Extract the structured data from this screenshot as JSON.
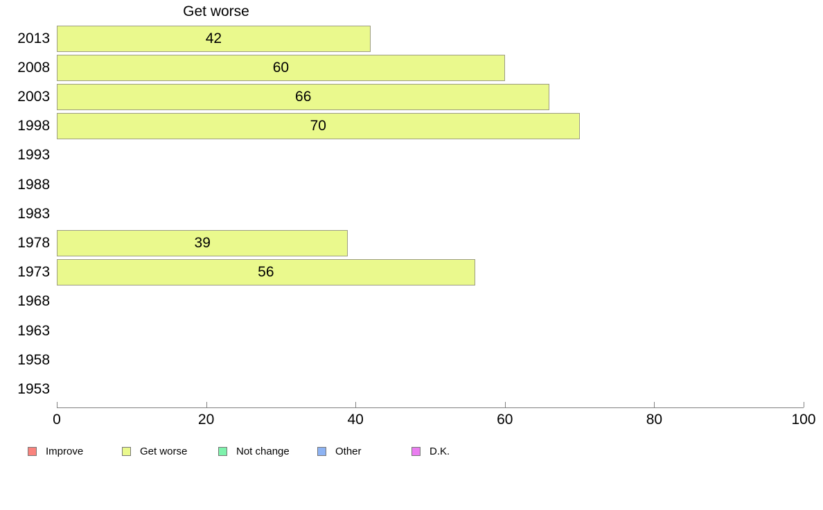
{
  "chart_data": {
    "type": "bar",
    "orientation": "horizontal",
    "title": "Get worse",
    "categories": [
      "2013",
      "2008",
      "2003",
      "1998",
      "1993",
      "1988",
      "1983",
      "1978",
      "1973",
      "1968",
      "1963",
      "1958",
      "1953"
    ],
    "values": [
      42,
      60,
      66,
      70,
      null,
      null,
      null,
      39,
      56,
      null,
      null,
      null,
      null
    ],
    "xlabel": "",
    "ylabel": "",
    "xlim": [
      0,
      100
    ],
    "x_ticks": [
      0,
      20,
      40,
      60,
      80,
      100
    ],
    "grid": false,
    "bar_color": "#EAF98D",
    "bar_border_color": "#9C9C82",
    "axis_color": "#808080",
    "legend_position": "bottom",
    "legend": [
      {
        "label": "Improve",
        "color": "#F9837D"
      },
      {
        "label": "Get worse",
        "color": "#EAF98D"
      },
      {
        "label": "Not change",
        "color": "#7EF2AC"
      },
      {
        "label": "Other",
        "color": "#8DB3F3"
      },
      {
        "label": "D.K.",
        "color": "#EA7DF0"
      }
    ]
  }
}
